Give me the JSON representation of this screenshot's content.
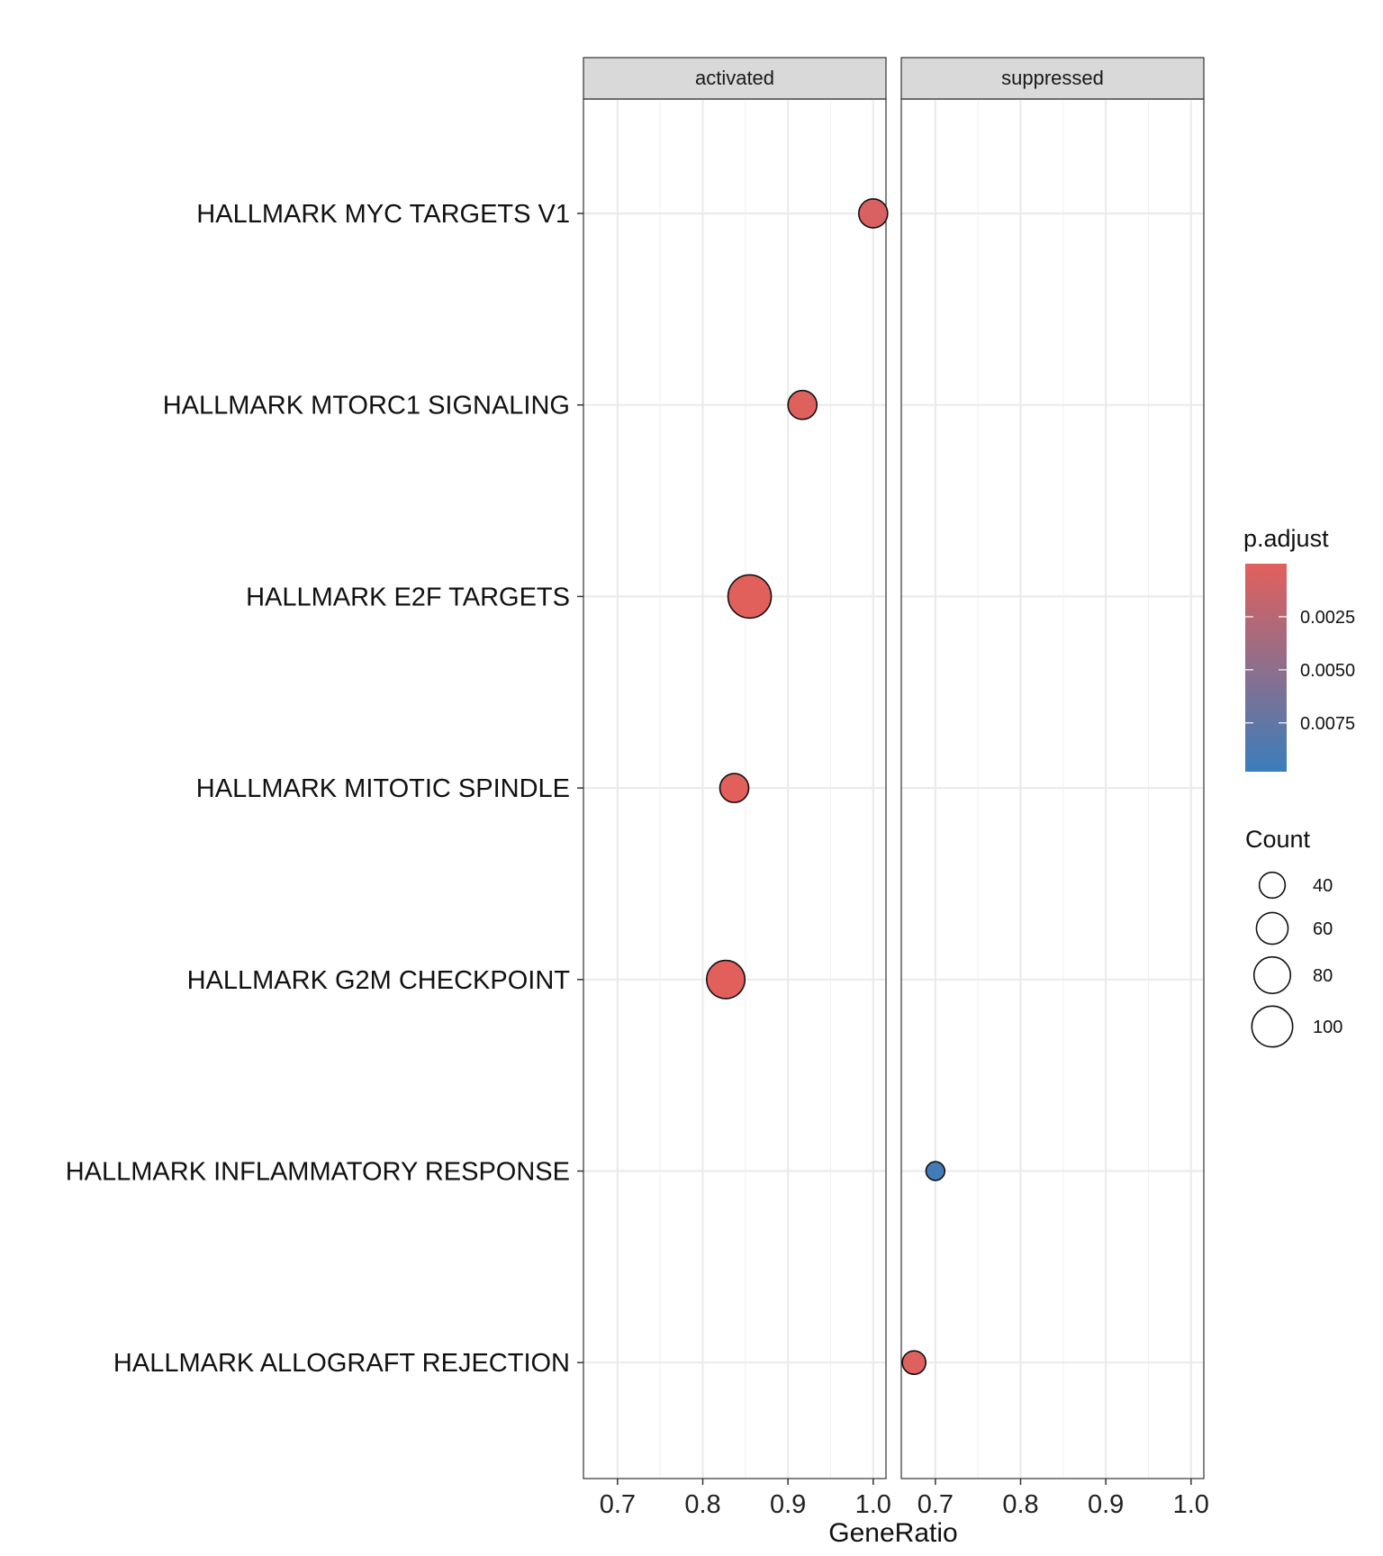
{
  "chart_data": {
    "type": "scatter",
    "facets": [
      "activated",
      "suppressed"
    ],
    "categories": [
      "HALLMARK MYC TARGETS V1",
      "HALLMARK MTORC1 SIGNALING",
      "HALLMARK E2F TARGETS",
      "HALLMARK MITOTIC SPINDLE",
      "HALLMARK G2M CHECKPOINT",
      "HALLMARK INFLAMMATORY RESPONSE",
      "HALLMARK ALLOGRAFT REJECTION"
    ],
    "points": [
      {
        "facet": "activated",
        "category": "HALLMARK MYC TARGETS V1",
        "x": 1.0,
        "count": 50,
        "p_adjust": 0.0005
      },
      {
        "facet": "activated",
        "category": "HALLMARK MTORC1 SIGNALING",
        "x": 0.917,
        "count": 50,
        "p_adjust": 0.0002
      },
      {
        "facet": "activated",
        "category": "HALLMARK E2F TARGETS",
        "x": 0.855,
        "count": 112,
        "p_adjust": 0.0
      },
      {
        "facet": "activated",
        "category": "HALLMARK MITOTIC SPINDLE",
        "x": 0.837,
        "count": 50,
        "p_adjust": 0.0
      },
      {
        "facet": "activated",
        "category": "HALLMARK G2M CHECKPOINT",
        "x": 0.827,
        "count": 88,
        "p_adjust": 0.0
      },
      {
        "facet": "suppressed",
        "category": "HALLMARK INFLAMMATORY RESPONSE",
        "x": 0.7,
        "count": 21,
        "p_adjust": 0.0094
      },
      {
        "facet": "suppressed",
        "category": "HALLMARK ALLOGRAFT REJECTION",
        "x": 0.675,
        "count": 33,
        "p_adjust": 0.0003
      }
    ],
    "xlabel": "GeneRatio",
    "ylabel": "",
    "xlim": [
      0.66,
      1.015
    ],
    "xticks": [
      0.7,
      0.8,
      0.9,
      1.0
    ],
    "xtick_labels": [
      "0.7",
      "0.8",
      "0.9",
      "1.0"
    ],
    "grid": true,
    "color_legend": {
      "title": "p.adjust",
      "range": [
        0.0,
        0.0098
      ],
      "ticks": [
        0.0025,
        0.005,
        0.0075
      ],
      "tick_labels": [
        "0.0025",
        "0.0050",
        "0.0075"
      ],
      "low_color": "#e2605c",
      "high_color": "#3b7dbb"
    },
    "size_legend": {
      "title": "Count",
      "values": [
        40,
        60,
        80,
        100
      ],
      "labels": [
        "40",
        "60",
        "80",
        "100"
      ]
    },
    "legend_position": "right"
  }
}
